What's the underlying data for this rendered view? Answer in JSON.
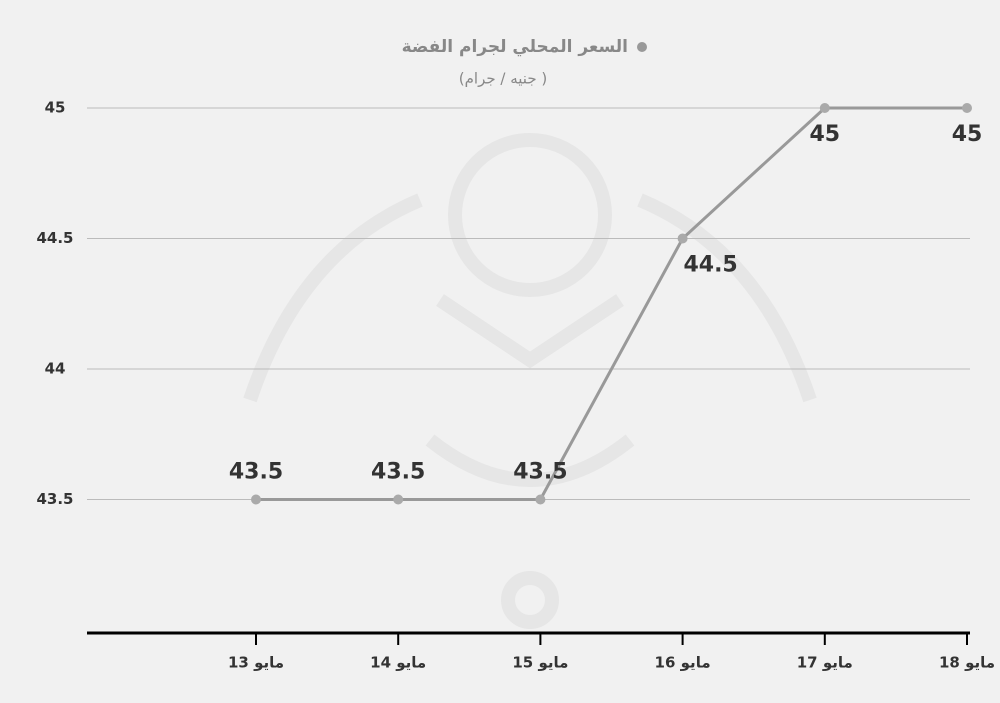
{
  "chart_data": {
    "type": "line",
    "title": "السعر المحلي لجرام الفضة",
    "subtitle": "(جنيه / جرام )",
    "categories": [
      "13 مايو",
      "14 مايو",
      "15 مايو",
      "16 مايو",
      "17 مايو",
      "18 مايو"
    ],
    "series": [
      {
        "name": "السعر المحلي لجرام الفضة",
        "color": "#999999",
        "values": [
          43.5,
          43.5,
          43.5,
          44.5,
          45,
          45
        ]
      }
    ],
    "ylim": [
      43,
      45
    ],
    "yticks": [
      43.5,
      44,
      44.5,
      45
    ],
    "grid": true
  }
}
